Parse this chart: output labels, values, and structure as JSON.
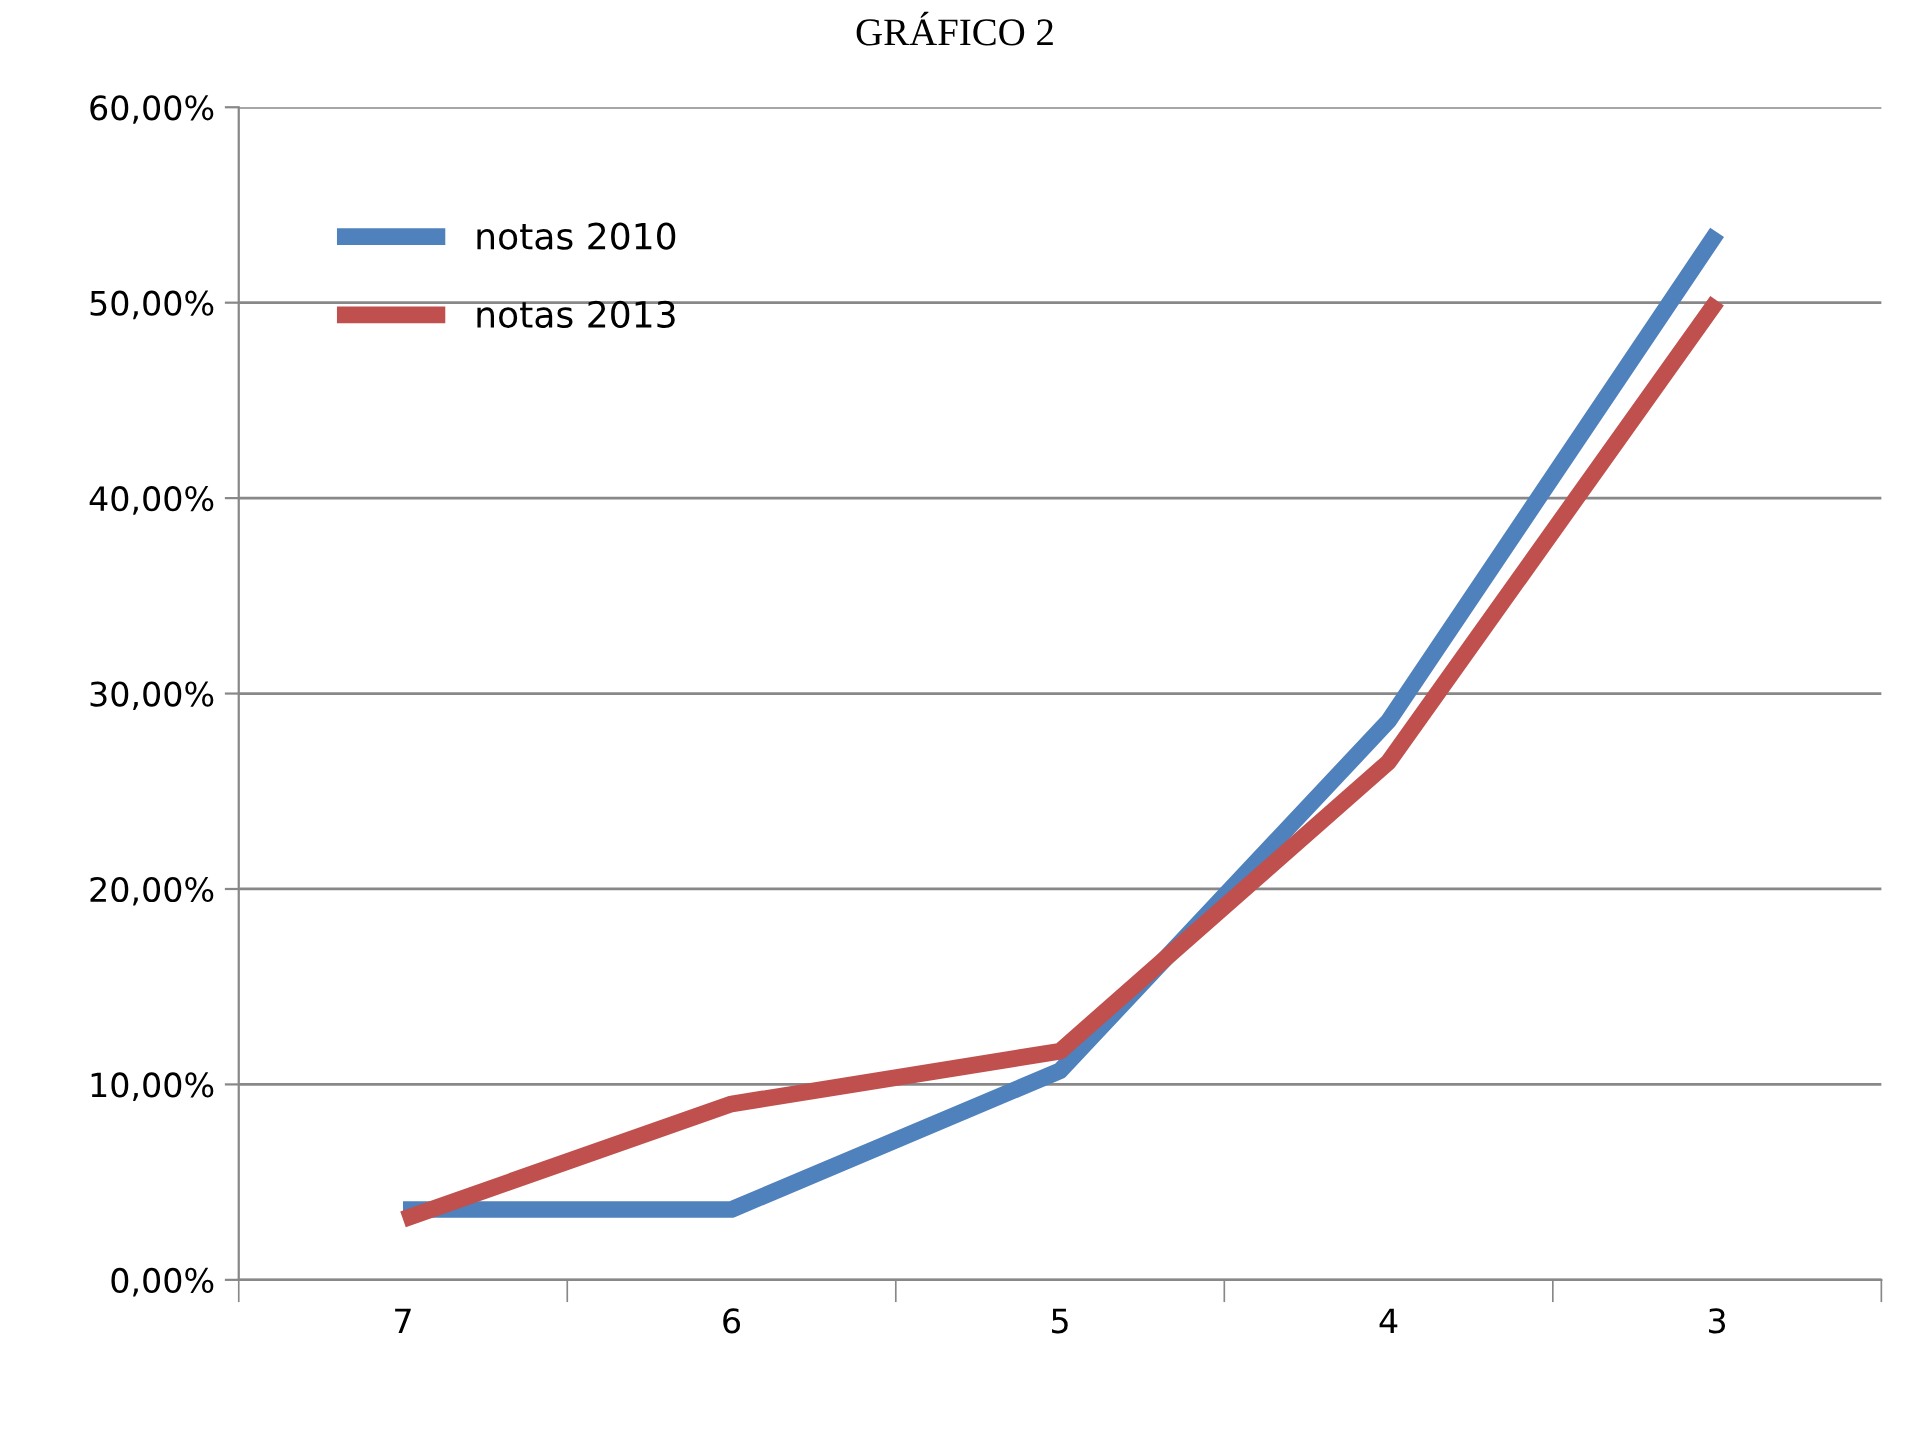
{
  "chart_data": {
    "type": "line",
    "title": "GRÁFICO 2",
    "categories": [
      "7",
      "6",
      "5",
      "4",
      "3"
    ],
    "series": [
      {
        "name": "notas 2010",
        "color": "#4f81bd",
        "values": [
          3.6,
          3.6,
          10.7,
          28.6,
          53.6
        ]
      },
      {
        "name": "notas 2013",
        "color": "#c0504d",
        "values": [
          3.1,
          9.0,
          11.7,
          26.5,
          50.1
        ]
      }
    ],
    "ylim": [
      0,
      60
    ],
    "yticks": [
      {
        "value": 0,
        "label": "0,00%"
      },
      {
        "value": 10,
        "label": "10,00%"
      },
      {
        "value": 20,
        "label": "20,00%"
      },
      {
        "value": 30,
        "label": "30,00%"
      },
      {
        "value": 40,
        "label": "40,00%"
      },
      {
        "value": 50,
        "label": "50,00%"
      },
      {
        "value": 60,
        "label": "60,00%"
      }
    ],
    "grid": "y",
    "legend": "top left",
    "marker": "none",
    "line_style": "solid"
  }
}
